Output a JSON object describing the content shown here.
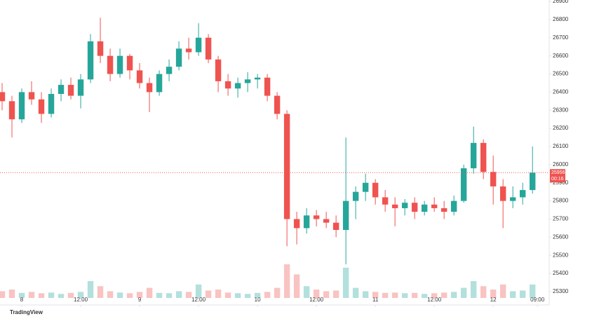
{
  "chart_data": {
    "type": "candlestick",
    "brand": "TradingView",
    "x": [
      -4,
      -2,
      0,
      2,
      4,
      6,
      8,
      10,
      12,
      14,
      16,
      18,
      20,
      22,
      24,
      26,
      28,
      30,
      32,
      34,
      36,
      38,
      40,
      42,
      44,
      46,
      48,
      50,
      52,
      54,
      56,
      58,
      60,
      62,
      64,
      66,
      68,
      70,
      72,
      74,
      76,
      78,
      80,
      82,
      84,
      86,
      88,
      90,
      92,
      94,
      96,
      98,
      100,
      102,
      104
    ],
    "open": [
      26400,
      26350,
      26250,
      26400,
      26360,
      26280,
      26390,
      26440,
      26380,
      26470,
      26680,
      26600,
      26500,
      26600,
      26520,
      26450,
      26400,
      26500,
      26540,
      26640,
      26620,
      26700,
      26580,
      26460,
      26420,
      26450,
      26470,
      26480,
      26380,
      26280,
      25700,
      25650,
      25720,
      25700,
      25680,
      25640,
      25800,
      25850,
      25900,
      25820,
      25780,
      25760,
      25790,
      25740,
      25780,
      25760,
      25740,
      25800,
      25980,
      26120,
      25960,
      25880,
      25800,
      25820,
      25860
    ],
    "high": [
      26450,
      26380,
      26420,
      26460,
      26400,
      26420,
      26470,
      26480,
      26500,
      26720,
      26810,
      26640,
      26640,
      26610,
      26560,
      26480,
      26520,
      26580,
      26680,
      26700,
      26780,
      26720,
      26600,
      26500,
      26480,
      26510,
      26500,
      26500,
      26400,
      26300,
      25740,
      25760,
      25750,
      25740,
      25720,
      26150,
      25880,
      25950,
      25920,
      25860,
      25820,
      25810,
      25820,
      25800,
      25820,
      25800,
      25830,
      26000,
      26210,
      26140,
      26050,
      25920,
      25880,
      25900,
      26100
    ],
    "low": [
      26300,
      26150,
      26230,
      26330,
      26230,
      26260,
      26350,
      26360,
      26310,
      26450,
      26560,
      26460,
      26480,
      26470,
      26420,
      26290,
      26380,
      26460,
      26520,
      26580,
      26600,
      26560,
      26400,
      26380,
      26370,
      26400,
      26420,
      26350,
      26250,
      25550,
      25560,
      25620,
      25660,
      25650,
      25600,
      25450,
      25700,
      25800,
      25780,
      25740,
      25660,
      25720,
      25700,
      25720,
      25740,
      25700,
      25720,
      25790,
      25950,
      25920,
      25780,
      25650,
      25760,
      25780,
      25840
    ],
    "close": [
      26350,
      26250,
      26400,
      26360,
      26280,
      26390,
      26440,
      26380,
      26470,
      26680,
      26600,
      26500,
      26600,
      26520,
      26450,
      26400,
      26500,
      26540,
      26640,
      26620,
      26700,
      26580,
      26460,
      26420,
      26450,
      26470,
      26480,
      26380,
      26280,
      25700,
      25650,
      25720,
      25700,
      25680,
      25640,
      25800,
      25850,
      25900,
      25820,
      25780,
      25760,
      25790,
      25740,
      25780,
      25760,
      25740,
      25800,
      25980,
      26120,
      25960,
      25880,
      25800,
      25820,
      25860,
      25956
    ],
    "volume": [
      20,
      25,
      15,
      18,
      14,
      16,
      12,
      15,
      18,
      50,
      35,
      20,
      16,
      14,
      18,
      30,
      15,
      14,
      20,
      18,
      40,
      22,
      25,
      16,
      14,
      12,
      15,
      18,
      30,
      100,
      70,
      35,
      25,
      20,
      22,
      90,
      30,
      20,
      18,
      15,
      16,
      14,
      15,
      12,
      14,
      16,
      18,
      30,
      50,
      35,
      25,
      40,
      20,
      22,
      40
    ],
    "volume_lim": [
      0,
      100
    ],
    "countdown": "00:16",
    "up_color": "#26a69a",
    "down_color": "#ef5350",
    "xlim": [
      -4.43,
      107.4
    ],
    "xticks": [
      {
        "value": 0,
        "label": "8"
      },
      {
        "value": 12,
        "label": "12:00"
      },
      {
        "value": 24,
        "label": "9"
      },
      {
        "value": 36,
        "label": "12:00"
      },
      {
        "value": 48,
        "label": "10"
      },
      {
        "value": 60,
        "label": "12:00"
      },
      {
        "value": 72,
        "label": "11"
      },
      {
        "value": 84,
        "label": "12:00"
      },
      {
        "value": 96,
        "label": "12"
      },
      {
        "value": 105,
        "label": "09:00"
      }
    ],
    "ylim": [
      25265,
      26908
    ],
    "yticks": [
      25300,
      25400,
      25500,
      25600,
      25700,
      25800,
      25900,
      26000,
      26100,
      26200,
      26300,
      26400,
      26500,
      26600,
      26700,
      26800,
      26900
    ],
    "grid": false
  }
}
